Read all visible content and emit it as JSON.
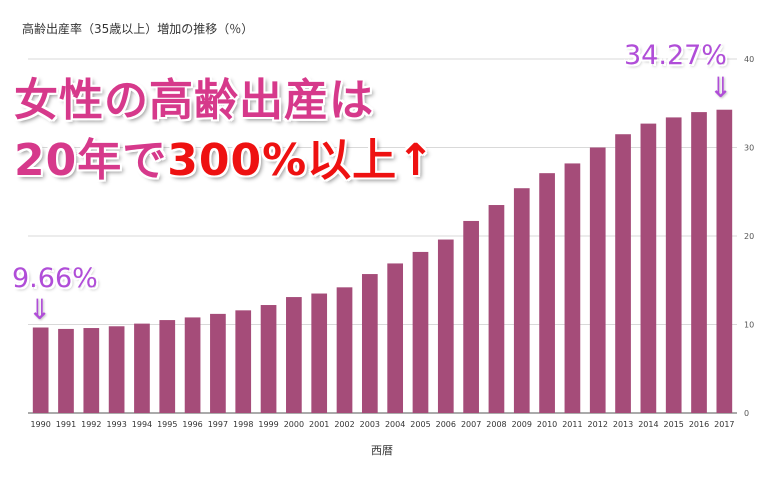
{
  "chart_data": {
    "type": "bar",
    "title": "高齢出産率（35歳以上）増加の推移（％）",
    "xlabel": "西暦",
    "ylabel": "",
    "ylim": [
      0,
      40
    ],
    "yticks": [
      "0",
      "10",
      "20",
      "30",
      "40"
    ],
    "grid": true,
    "categories": [
      "1990",
      "1991",
      "1992",
      "1993",
      "1994",
      "1995",
      "1996",
      "1997",
      "1998",
      "1999",
      "2000",
      "2001",
      "2002",
      "2003",
      "2004",
      "2005",
      "2006",
      "2007",
      "2008",
      "2009",
      "2010",
      "2011",
      "2012",
      "2013",
      "2014",
      "2015",
      "2016",
      "2017"
    ],
    "values": [
      9.66,
      9.5,
      9.6,
      9.8,
      10.1,
      10.5,
      10.8,
      11.2,
      11.6,
      12.2,
      13.1,
      13.5,
      14.2,
      15.7,
      16.9,
      18.2,
      19.6,
      21.7,
      23.5,
      25.4,
      27.1,
      28.2,
      30.0,
      31.5,
      32.7,
      33.4,
      34.0,
      34.27
    ],
    "bar_color": "#a54c79"
  },
  "headline": {
    "line1": "女性の高齢出産は",
    "line2_prefix": "20年で",
    "line2_emphasis": "300%以上↑"
  },
  "annotations": {
    "start_value": "9.66%",
    "end_value": "34.27%",
    "arrow": "⇓"
  },
  "colors": {
    "headline": "#d6398b",
    "emphasis": "#ee1111",
    "annotation": "#b04dd8"
  }
}
